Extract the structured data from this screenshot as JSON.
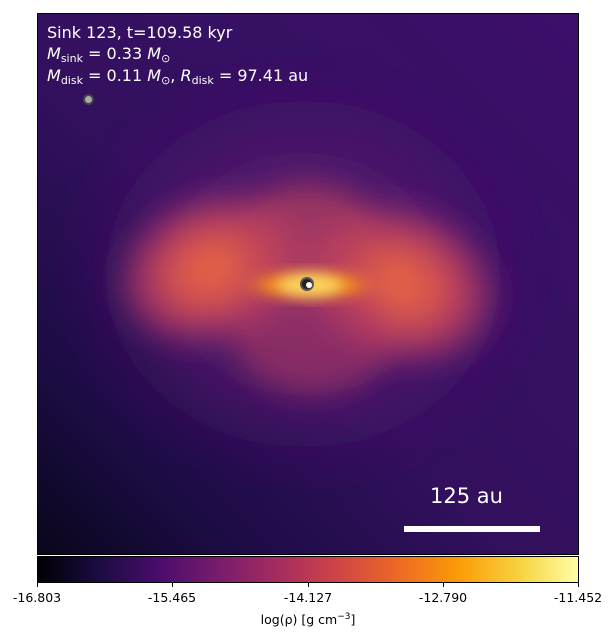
{
  "annotation": {
    "line1": "Sink 123, t=109.58 kyr",
    "msink_symbol": "M",
    "msink_sub": "sink",
    "msink_value": "= 0.33",
    "mdisk_symbol": "M",
    "mdisk_sub": "disk",
    "mdisk_value": "= 0.11",
    "rdisk_symbol": "R",
    "rdisk_sub": "disk",
    "rdisk_value": "= 97.41 au",
    "msun": "M",
    "msun_sub": "⊙"
  },
  "scale_bar": {
    "label": "125 au"
  },
  "colorbar": {
    "ticks": [
      "-16.803",
      "-15.465",
      "-14.127",
      "-12.790",
      "-11.452"
    ],
    "label_prefix": "log(ρ) [g cm",
    "label_exp": "−3",
    "label_suffix": "]",
    "colormap": "inferno",
    "range": [
      -16.803,
      -11.452
    ]
  },
  "colors": {
    "background_dark": "#0c0620",
    "accent": "#fbe07a"
  }
}
